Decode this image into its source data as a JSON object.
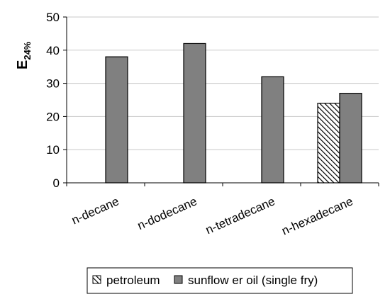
{
  "chart_data": {
    "type": "bar",
    "ylabel_main": "E",
    "ylabel_sub": "24%",
    "ylim": [
      0,
      50
    ],
    "yticks": [
      "0",
      "10",
      "20",
      "30",
      "40",
      "50"
    ],
    "categories": [
      "n-decane",
      "n-dodecane",
      "n-tetradecane",
      "n-hexadecane"
    ],
    "series": [
      {
        "name": "petroleum",
        "values": [
          null,
          null,
          null,
          24
        ],
        "pattern": "hatch",
        "color": "#ffffff"
      },
      {
        "name": "sunflow er oil (single fry)",
        "values": [
          38,
          42,
          32,
          27
        ],
        "pattern": "solid",
        "color": "#808080"
      }
    ],
    "grid": true,
    "legend": "bottom"
  }
}
